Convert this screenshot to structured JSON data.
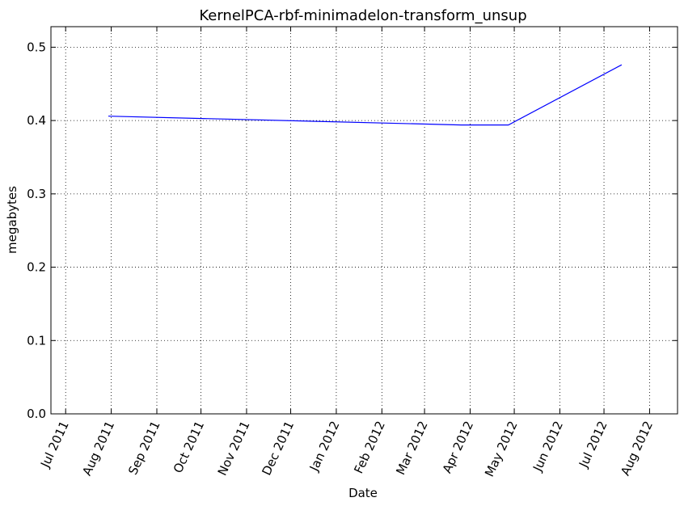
{
  "chart_data": {
    "type": "line",
    "title": "KernelPCA-rbf-minimadelon-transform_unsup",
    "xlabel": "Date",
    "ylabel": "megabytes",
    "x_ticks": [
      "Jul 2011",
      "Aug 2011",
      "Sep 2011",
      "Oct 2011",
      "Nov 2011",
      "Dec 2011",
      "Jan 2012",
      "Feb 2012",
      "Mar 2012",
      "Apr 2012",
      "May 2012",
      "Jun 2012",
      "Jul 2012",
      "Aug 2012"
    ],
    "y_ticks": [
      "0.0",
      "0.1",
      "0.2",
      "0.3",
      "0.4",
      "0.5"
    ],
    "ylim": [
      0,
      0.528
    ],
    "xlim": [
      "2011-06-21",
      "2012-08-20"
    ],
    "grid": true,
    "series": [
      {
        "color": "#0000ff",
        "points": [
          {
            "x": "2011-07-30",
            "y": 0.406
          },
          {
            "x": "2012-03-26",
            "y": 0.394
          },
          {
            "x": "2012-04-27",
            "y": 0.394
          },
          {
            "x": "2012-07-13",
            "y": 0.476
          }
        ]
      }
    ]
  }
}
